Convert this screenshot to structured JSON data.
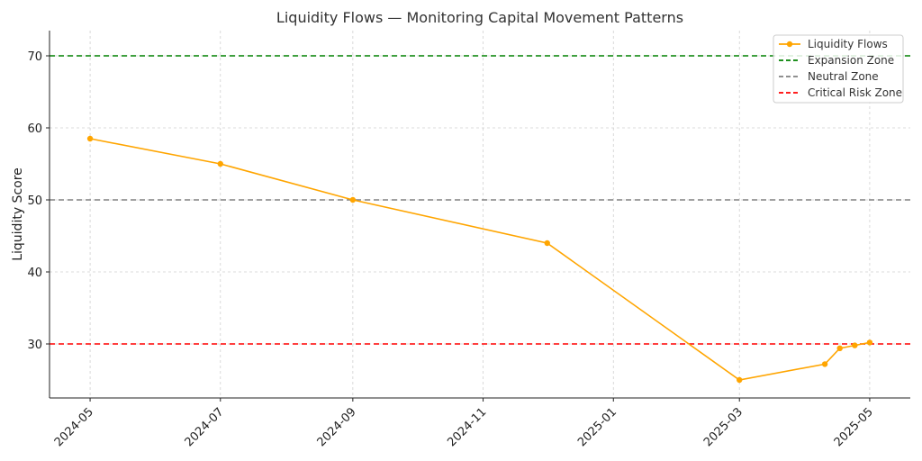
{
  "chart_data": {
    "type": "line",
    "title": "Liquidity Flows — Monitoring Capital Movement Patterns",
    "xlabel": "",
    "ylabel": "Liquidity Score",
    "ylim": [
      22.5,
      73.5
    ],
    "yticks": [
      30,
      40,
      50,
      60,
      70
    ],
    "xlim": [
      "2024-04-12",
      "2025-05-20"
    ],
    "xticks": [
      "2024-05",
      "2024-07",
      "2024-09",
      "2024-11",
      "2025-01",
      "2025-03",
      "2025-05"
    ],
    "grid": true,
    "legend_position": "top-right",
    "series": [
      {
        "name": "Liquidity Flows",
        "color": "#FFA500",
        "marker": "circle",
        "points": [
          {
            "x": "2024-05-01",
            "y": 58.5
          },
          {
            "x": "2024-07-01",
            "y": 55.0
          },
          {
            "x": "2024-09-01",
            "y": 50.0
          },
          {
            "x": "2024-12-01",
            "y": 44.0
          },
          {
            "x": "2025-03-01",
            "y": 25.0
          },
          {
            "x": "2025-04-10",
            "y": 27.2
          },
          {
            "x": "2025-04-17",
            "y": 29.4
          },
          {
            "x": "2025-04-24",
            "y": 29.8
          },
          {
            "x": "2025-05-01",
            "y": 30.2
          }
        ]
      }
    ],
    "reference_lines": [
      {
        "name": "Expansion Zone",
        "y": 70,
        "color": "#008000",
        "style": "dashed"
      },
      {
        "name": "Neutral Zone",
        "y": 50,
        "color": "#808080",
        "style": "dashed"
      },
      {
        "name": "Critical Risk Zone",
        "y": 30,
        "color": "#FF0000",
        "style": "dashed"
      }
    ]
  }
}
